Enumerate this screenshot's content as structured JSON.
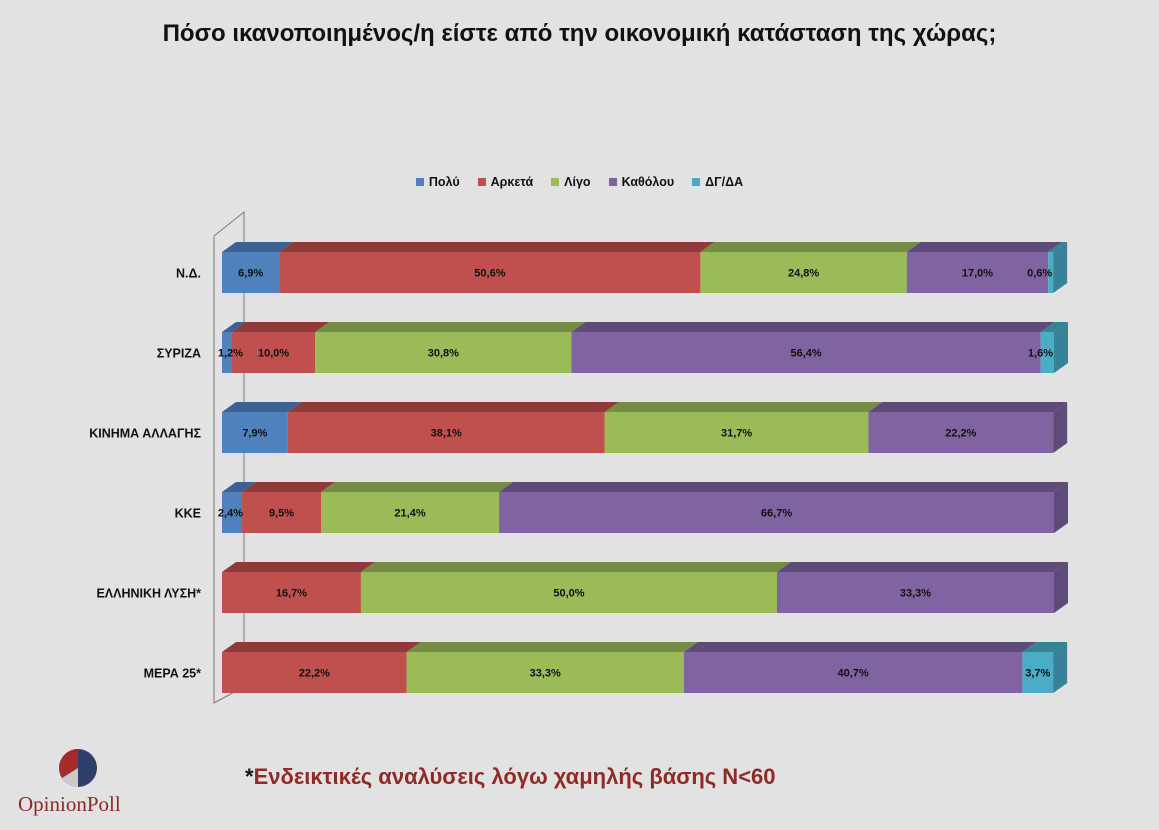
{
  "title": "Πόσο ικανοποιημένος/η είστε από την οικονομική κατάσταση της χώρας;",
  "footnote": {
    "star": "*",
    "text": "Ενδεικτικές αναλύσεις λόγω χαμηλής βάσης Ν<60"
  },
  "logo": {
    "text": "OpinionPoll"
  },
  "colors": {
    "series": [
      "#4f81bd",
      "#c0504d",
      "#9bbb59",
      "#8064a2",
      "#4bacc6"
    ],
    "tops": [
      "#3b6295",
      "#8e3b39",
      "#748d43",
      "#5f4b7a",
      "#378299"
    ],
    "background": "#e2e2e2",
    "accent": "#8e2b26"
  },
  "chart_data": {
    "type": "bar",
    "orientation": "horizontal",
    "stacked": true,
    "style": "3d",
    "title": "Πόσο ικανοποιημένος/η είστε από την οικονομική κατάσταση της χώρας;",
    "legend_position": "top",
    "categories": [
      "Ν.Δ.",
      "ΣΥΡΙΖΑ",
      "ΚΙΝΗΜΑ ΑΛΛΑΓΗΣ",
      "ΚΚΕ",
      "ΕΛΛΗΝΙΚΗ ΛΥΣΗ*",
      "ΜΕΡΑ 25*"
    ],
    "series": [
      {
        "name": "Πολύ",
        "values": [
          6.9,
          1.2,
          7.9,
          2.4,
          0,
          0
        ],
        "labels": [
          "6,9%",
          "1,2%",
          "7,9%",
          "2,4%",
          "",
          ""
        ]
      },
      {
        "name": "Αρκετά",
        "values": [
          50.6,
          10.0,
          38.1,
          9.5,
          16.7,
          22.2
        ],
        "labels": [
          "50,6%",
          "10,0%",
          "38,1%",
          "9,5%",
          "16,7%",
          "22,2%"
        ]
      },
      {
        "name": "Λίγο",
        "values": [
          24.8,
          30.8,
          31.7,
          21.4,
          50.0,
          33.3
        ],
        "labels": [
          "24,8%",
          "30,8%",
          "31,7%",
          "21,4%",
          "50,0%",
          "33,3%"
        ]
      },
      {
        "name": "Καθόλου",
        "values": [
          17.0,
          56.4,
          22.2,
          66.7,
          33.3,
          40.7
        ],
        "labels": [
          "17,0%",
          "56,4%",
          "22,2%",
          "66,7%",
          "33,3%",
          "40,7%"
        ]
      },
      {
        "name": "ΔΓ/ΔΑ",
        "values": [
          0.6,
          1.6,
          0,
          0,
          0,
          3.7
        ],
        "labels": [
          "0,6%",
          "1,6%",
          "",
          "",
          "",
          "3,7%"
        ]
      }
    ],
    "xlim": [
      0,
      100
    ]
  }
}
